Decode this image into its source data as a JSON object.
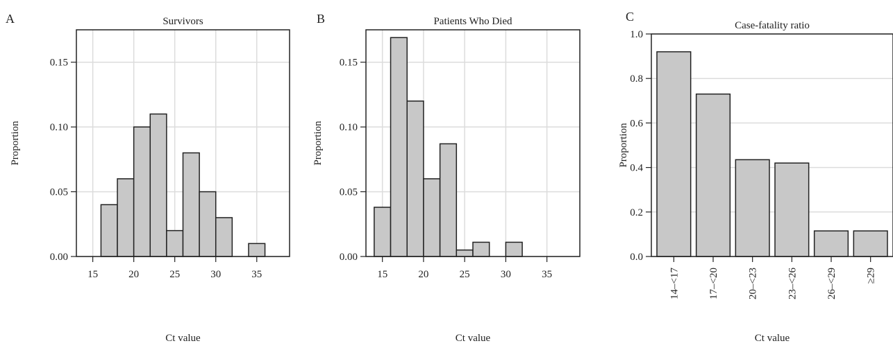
{
  "chart_data": [
    {
      "panel": "A",
      "type": "bar",
      "title": "Survivors",
      "xlabel": "Ct value",
      "ylabel": "Proportion",
      "xlim": [
        13,
        39
      ],
      "ylim": [
        0,
        0.175
      ],
      "xticks": [
        15,
        20,
        25,
        30,
        35
      ],
      "yticks": [
        0.0,
        0.05,
        0.1,
        0.15
      ],
      "ytick_labels": [
        "0.00",
        "0.05",
        "0.10",
        "0.15"
      ],
      "grid": true,
      "colors": {
        "bar_fill": "#c8c8c8",
        "bar_edge": "#222222",
        "grid": "#dcdcdc"
      },
      "bins": [
        {
          "x0": 16,
          "x1": 18,
          "value": 0.04
        },
        {
          "x0": 18,
          "x1": 20,
          "value": 0.06
        },
        {
          "x0": 20,
          "x1": 22,
          "value": 0.1
        },
        {
          "x0": 22,
          "x1": 24,
          "value": 0.11
        },
        {
          "x0": 24,
          "x1": 26,
          "value": 0.02
        },
        {
          "x0": 26,
          "x1": 28,
          "value": 0.08
        },
        {
          "x0": 28,
          "x1": 30,
          "value": 0.05
        },
        {
          "x0": 30,
          "x1": 32,
          "value": 0.03
        },
        {
          "x0": 32,
          "x1": 34,
          "value": 0.0
        },
        {
          "x0": 34,
          "x1": 36,
          "value": 0.01
        }
      ]
    },
    {
      "panel": "B",
      "type": "bar",
      "title": "Patients Who Died",
      "xlabel": "Ct value",
      "ylabel": "Proportion",
      "xlim": [
        13,
        39
      ],
      "ylim": [
        0,
        0.175
      ],
      "xticks": [
        15,
        20,
        25,
        30,
        35
      ],
      "yticks": [
        0.0,
        0.05,
        0.1,
        0.15
      ],
      "ytick_labels": [
        "0.00",
        "0.05",
        "0.10",
        "0.15"
      ],
      "grid": true,
      "colors": {
        "bar_fill": "#c8c8c8",
        "bar_edge": "#222222",
        "grid": "#dcdcdc"
      },
      "bins": [
        {
          "x0": 14,
          "x1": 16,
          "value": 0.038
        },
        {
          "x0": 16,
          "x1": 18,
          "value": 0.169
        },
        {
          "x0": 18,
          "x1": 20,
          "value": 0.12
        },
        {
          "x0": 20,
          "x1": 22,
          "value": 0.06
        },
        {
          "x0": 22,
          "x1": 24,
          "value": 0.087
        },
        {
          "x0": 24,
          "x1": 26,
          "value": 0.005
        },
        {
          "x0": 26,
          "x1": 28,
          "value": 0.011
        },
        {
          "x0": 28,
          "x1": 30,
          "value": 0.0
        },
        {
          "x0": 30,
          "x1": 32,
          "value": 0.011
        }
      ]
    },
    {
      "panel": "C",
      "type": "bar",
      "title": "Case-fatality ratio",
      "xlabel": "Ct value",
      "ylabel": "Proportion",
      "ylim": [
        0,
        1.0
      ],
      "yticks": [
        0.0,
        0.2,
        0.4,
        0.6,
        0.8,
        1.0
      ],
      "ytick_labels": [
        "0.0",
        "0.2",
        "0.4",
        "0.6",
        "0.8",
        "1.0"
      ],
      "grid": true,
      "colors": {
        "bar_fill": "#c8c8c8",
        "bar_edge": "#222222",
        "grid": "#dcdcdc"
      },
      "categories": [
        "14–<17",
        "17–<20",
        "20–<23",
        "23–<26",
        "26–<29",
        "≥29"
      ],
      "values": [
        0.92,
        0.73,
        0.435,
        0.42,
        0.115,
        0.115
      ]
    }
  ]
}
